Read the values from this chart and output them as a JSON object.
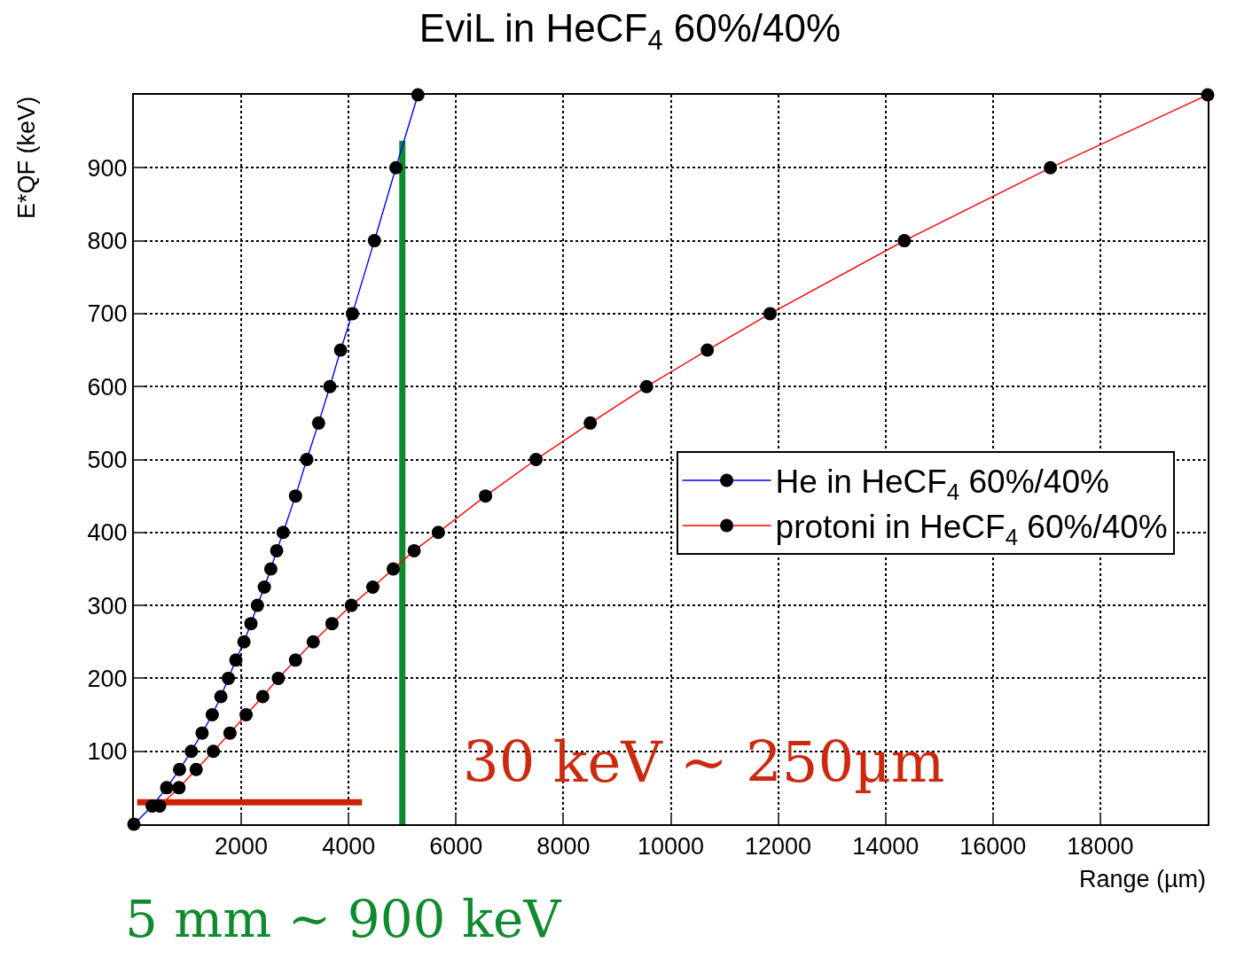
{
  "chart_data": {
    "type": "line",
    "title": "EviL in HeCF$_{4}$ 60%/40%",
    "xlabel": "Range (µm)",
    "ylabel": "E*QF (keV)",
    "xlim": [
      0,
      20000
    ],
    "xticks": [
      2000,
      4000,
      6000,
      8000,
      10000,
      12000,
      14000,
      16000,
      18000
    ],
    "ylim": [
      0,
      1000
    ],
    "yticks": [
      100,
      200,
      300,
      400,
      500,
      600,
      700,
      800,
      900
    ],
    "grid": true,
    "legend": "right",
    "marker": "circle",
    "line_style": "solid",
    "series": [
      {
        "name": "He in HeCF$_{4}$ 60%/40%",
        "color": "#0000ff",
        "x": [
          0,
          340,
          610,
          850,
          1070,
          1270,
          1460,
          1620,
          1760,
          1900,
          2050,
          2180,
          2300,
          2430,
          2550,
          2660,
          2780,
          3010,
          3220,
          3440,
          3650,
          3850,
          4070,
          4480,
          4880,
          5290
        ],
        "values": [
          0,
          25,
          50,
          75,
          100,
          125,
          150,
          175,
          200,
          225,
          250,
          275,
          300,
          325,
          350,
          375,
          400,
          450,
          500,
          550,
          600,
          650,
          700,
          800,
          900,
          1000
        ]
      },
      {
        "name": "protoni in HeCF$_{4}$ 60%/40%",
        "color": "#ff0000",
        "x": [
          480,
          840,
          1160,
          1480,
          1790,
          2090,
          2400,
          2690,
          3010,
          3340,
          3690,
          4050,
          4450,
          4830,
          5220,
          5670,
          6550,
          7490,
          8500,
          9550,
          10680,
          11850,
          14350,
          17070,
          20000
        ],
        "values": [
          25,
          50,
          75,
          100,
          125,
          150,
          175,
          200,
          225,
          250,
          275,
          300,
          325,
          350,
          375,
          400,
          450,
          500,
          550,
          600,
          650,
          700,
          800,
          900,
          1000
        ]
      },
      {
        "color": "#cc2200",
        "x": [
          60,
          4250
        ],
        "values": [
          30,
          30
        ],
        "marker": "none"
      },
      {
        "color": "#118a2e",
        "x": [
          5000,
          5000
        ],
        "values": [
          0,
          937
        ],
        "marker": "none"
      }
    ],
    "annotations": [
      "30 keV ~ 250µm",
      "5 mm ~ 900 keV"
    ]
  }
}
